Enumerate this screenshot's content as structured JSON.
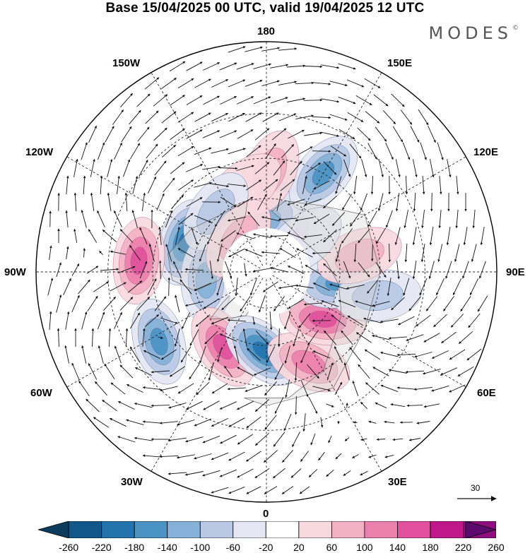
{
  "title": "Base 15/04/2025 00 UTC, valid 19/04/2025 12 UTC",
  "logo": {
    "text": "MODES",
    "mark": "©"
  },
  "map": {
    "projection": "north-polar-stereographic",
    "longitude_labels": {
      "top": "180",
      "top_left": "150W",
      "top_right": "150E",
      "upper_left": "120W",
      "upper_right": "120E",
      "left": "90W",
      "right": "90E",
      "lower_left": "60W",
      "lower_right": "60E",
      "bottom_left": "30W",
      "bottom_right": "30E",
      "bottom": "0"
    },
    "reference_vector": {
      "label": "30"
    },
    "anomaly_centers": [
      {
        "lon": -110,
        "lat": 55,
        "value": -220
      },
      {
        "lon": -95,
        "lat": 40,
        "value": 180
      },
      {
        "lon": -112,
        "lat": 72,
        "value": 140
      },
      {
        "lon": -82,
        "lat": 65,
        "value": -120
      },
      {
        "lon": -57,
        "lat": 40,
        "value": -180
      },
      {
        "lon": -30,
        "lat": 55,
        "value": 160
      },
      {
        "lon": -3,
        "lat": 58,
        "value": -220
      },
      {
        "lon": 25,
        "lat": 50,
        "value": 140
      },
      {
        "lon": 50,
        "lat": 60,
        "value": 180
      },
      {
        "lon": 82,
        "lat": 60,
        "value": -160
      },
      {
        "lon": 78,
        "lat": 45,
        "value": -100
      },
      {
        "lon": 100,
        "lat": 52,
        "value": 80
      },
      {
        "lon": 150,
        "lat": 75,
        "value": 120
      },
      {
        "lon": 170,
        "lat": 60,
        "value": -120
      },
      {
        "lon": -178,
        "lat": 70,
        "value": -120
      },
      {
        "lon": 150,
        "lat": 45,
        "value": -160
      },
      {
        "lon": 178,
        "lat": 50,
        "value": 80
      },
      {
        "lon": -165,
        "lat": 55,
        "value": 60
      },
      {
        "lon": -140,
        "lat": 58,
        "value": -100
      },
      {
        "lon": 130,
        "lat": 70,
        "value": -60
      },
      {
        "lon": -140,
        "lat": 72,
        "value": 80
      }
    ]
  },
  "colorbar": {
    "levels": [
      "-260",
      "-220",
      "-180",
      "-140",
      "-100",
      "-60",
      "-20",
      "20",
      "60",
      "100",
      "140",
      "180",
      "220",
      "260"
    ],
    "colors": [
      "#0d3b5e",
      "#12578a",
      "#2373ad",
      "#4a93c4",
      "#86b1d8",
      "#b9c8e4",
      "#e4e6f3",
      "#ffffff",
      "#f8d9de",
      "#f2b1c4",
      "#ec80ad",
      "#e0509c",
      "#c0188a",
      "#8e0e7f",
      "#5c0a6e"
    ]
  }
}
